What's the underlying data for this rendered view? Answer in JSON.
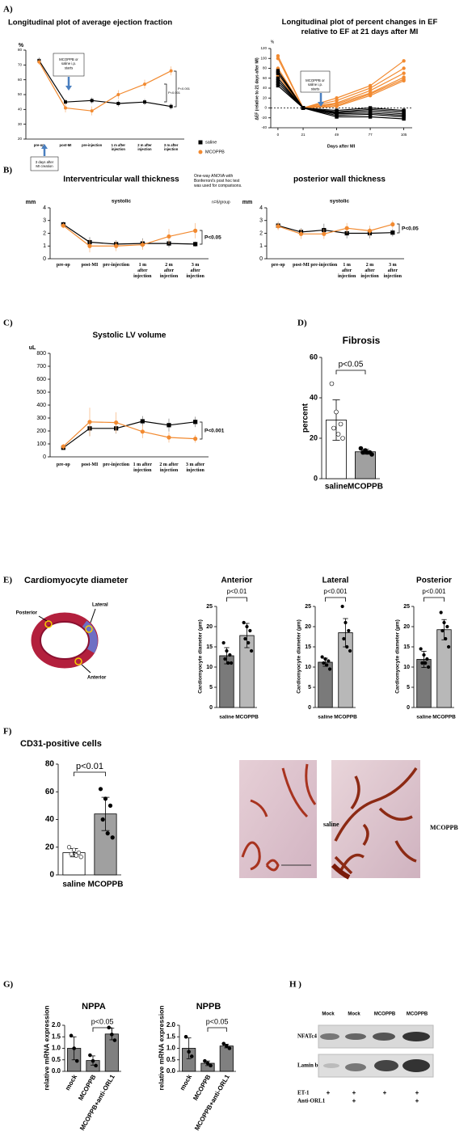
{
  "panel_labels": [
    "A)",
    "B)",
    "C)",
    "D)",
    "E)",
    "F)",
    "G)",
    "H )"
  ],
  "chart_data": [
    {
      "type": "line",
      "title": "Longitudinal plot of average ejection fraction",
      "ylabel": "%",
      "categories": [
        "pre-op",
        "post-MI",
        "pre-injection",
        "1 m after injection",
        "2 m after injection",
        "3 m after injection"
      ],
      "ylim": [
        20,
        80
      ],
      "yticks": [
        20,
        30,
        40,
        50,
        60,
        70,
        80
      ],
      "legend": "right",
      "series": [
        {
          "name": "saline",
          "color": "#000000",
          "marker": "square",
          "values": [
            73,
            45,
            46,
            44,
            45,
            42
          ],
          "errors": [
            2,
            2,
            2,
            2,
            2,
            2
          ]
        },
        {
          "name": "MCOPPB",
          "color": "#f28a30",
          "marker": "circle",
          "values": [
            72,
            41,
            39,
            50,
            57,
            66
          ],
          "errors": [
            2,
            3,
            3,
            3,
            3,
            3
          ]
        }
      ],
      "annotations": [
        "MCOPPB or saline i.p. starts",
        "3 days after MI creation",
        "P<0.001",
        "P<0.001",
        "One-way ANOVA with Bonferroni's post hoc test was used for comparisons.",
        "n=6/group"
      ]
    },
    {
      "type": "line",
      "title": "Longitudinal plot of percent changes in EF relative to EF at 21 days after MI",
      "yunit": "%",
      "ylabel": "ΔEF (relative to 21 days after MI)",
      "xlabel": "Days after MI",
      "x": [
        0,
        21,
        49,
        77,
        105
      ],
      "xlim": [
        -6,
        112
      ],
      "xticks": [
        0,
        21,
        49,
        77,
        105
      ],
      "ylim": [
        -40,
        120
      ],
      "yticks": [
        -40,
        -20,
        0,
        20,
        40,
        60,
        80,
        100,
        120
      ],
      "hline": 0,
      "series": [
        {
          "color": "#f28a30",
          "marker": "circle",
          "values": [
            105,
            0,
            20,
            45,
            95
          ]
        },
        {
          "color": "#f28a30",
          "marker": "circle",
          "values": [
            100,
            0,
            15,
            40,
            80
          ]
        },
        {
          "color": "#f28a30",
          "marker": "circle",
          "values": [
            80,
            0,
            10,
            35,
            70
          ]
        },
        {
          "color": "#f28a30",
          "marker": "circle",
          "values": [
            75,
            0,
            8,
            30,
            62
          ]
        },
        {
          "color": "#f28a30",
          "marker": "circle",
          "values": [
            70,
            0,
            5,
            28,
            58
          ]
        },
        {
          "color": "#f28a30",
          "marker": "circle",
          "values": [
            65,
            0,
            3,
            25,
            55
          ]
        },
        {
          "color": "#000000",
          "marker": "square",
          "values": [
            75,
            0,
            -5,
            0,
            -5
          ]
        },
        {
          "color": "#000000",
          "marker": "square",
          "values": [
            70,
            0,
            -8,
            -3,
            -8
          ]
        },
        {
          "color": "#000000",
          "marker": "square",
          "values": [
            60,
            0,
            -10,
            -6,
            -12
          ]
        },
        {
          "color": "#000000",
          "marker": "square",
          "values": [
            55,
            0,
            -12,
            -10,
            -15
          ]
        },
        {
          "color": "#000000",
          "marker": "square",
          "values": [
            50,
            0,
            -15,
            -13,
            -18
          ]
        },
        {
          "color": "#000000",
          "marker": "square",
          "values": [
            45,
            0,
            -18,
            -18,
            -22
          ]
        }
      ],
      "annotations": [
        "MCOPPB or saline i.p. starts"
      ]
    },
    {
      "type": "line",
      "title": "Interventricular wall thickness",
      "subtitle": "systolic",
      "ylabel": "mm",
      "categories": [
        "pre-op",
        "post-MI",
        "pre-injection",
        "1 m after injection",
        "2 m after injection",
        "3 m after injection"
      ],
      "ylim": [
        0,
        4
      ],
      "yticks": [
        0,
        1,
        2,
        3,
        4
      ],
      "series": [
        {
          "color": "#000000",
          "marker": "square",
          "values": [
            2.7,
            1.3,
            1.15,
            1.2,
            1.2,
            1.15
          ],
          "errors": [
            0.2,
            0.4,
            0.3,
            0.4,
            0.3,
            0.2
          ]
        },
        {
          "color": "#f28a30",
          "marker": "circle",
          "values": [
            2.6,
            1.0,
            1.0,
            1.1,
            1.75,
            2.2
          ],
          "errors": [
            0.2,
            0.5,
            0.4,
            0.4,
            0.6,
            0.6
          ]
        }
      ],
      "annotations": [
        "P<0.05"
      ]
    },
    {
      "type": "line",
      "title": "posterior wall thickness",
      "subtitle": "systolic",
      "ylabel": "mm",
      "categories": [
        "pre-op",
        "post-MI",
        "pre-injection",
        "1 m after injection",
        "2 m after injection",
        "3 m after injection"
      ],
      "ylim": [
        0,
        4
      ],
      "yticks": [
        0,
        1,
        2,
        3,
        4
      ],
      "series": [
        {
          "color": "#000000",
          "marker": "square",
          "values": [
            2.6,
            2.1,
            2.25,
            2.0,
            2.0,
            2.05
          ],
          "errors": [
            0.3,
            0.3,
            0.5,
            0.4,
            0.4,
            0.3
          ]
        },
        {
          "color": "#f28a30",
          "marker": "circle",
          "values": [
            2.55,
            1.95,
            1.95,
            2.4,
            2.2,
            2.7
          ],
          "errors": [
            0.3,
            0.4,
            0.4,
            0.4,
            0.4,
            0.3
          ]
        }
      ],
      "annotations": [
        "P<0.05"
      ]
    },
    {
      "type": "line",
      "title": "Systolic LV volume",
      "ylabel": "uL",
      "categories": [
        "pre-op",
        "post-MI",
        "pre-injection",
        "1 m after injection",
        "2 m after injection",
        "3 m after injection"
      ],
      "ylim": [
        0,
        800
      ],
      "yticks": [
        0,
        100,
        200,
        300,
        400,
        500,
        600,
        700,
        800
      ],
      "series": [
        {
          "color": "#000000",
          "marker": "square",
          "values": [
            70,
            220,
            220,
            275,
            245,
            270
          ],
          "errors": [
            15,
            60,
            40,
            40,
            50,
            40
          ]
        },
        {
          "color": "#f28a30",
          "marker": "circle",
          "values": [
            80,
            270,
            265,
            195,
            150,
            140
          ],
          "errors": [
            20,
            110,
            80,
            50,
            40,
            30
          ]
        }
      ],
      "annotations": [
        "P<0.001"
      ]
    },
    {
      "type": "bar",
      "title": "Fibrosis",
      "ylabel": "percent",
      "categories": [
        "saline",
        "MCOPPB"
      ],
      "values": [
        29,
        13.3
      ],
      "errors": [
        10,
        1.2
      ],
      "colors": [
        "#ffffff",
        "#a0a0a0"
      ],
      "points": [
        [
          47,
          33,
          27,
          25,
          22,
          20
        ],
        [
          15,
          14,
          13,
          13,
          13,
          12
        ]
      ],
      "ylim": [
        0,
        60
      ],
      "yticks": [
        0,
        20,
        40,
        60
      ],
      "annotations": [
        "p<0.05"
      ]
    },
    {
      "type": "bar",
      "title": "Anterior",
      "ylabel": "Cardiomyocyte diameter (µm)",
      "categories": [
        "saline",
        "MCOPPB"
      ],
      "values": [
        12.8,
        17.8
      ],
      "errors": [
        2,
        3
      ],
      "colors": [
        "#7a7a7a",
        "#b8b8b8"
      ],
      "points": [
        [
          16,
          14,
          13,
          12,
          11,
          11
        ],
        [
          21,
          20,
          19,
          17,
          16,
          14
        ]
      ],
      "ylim": [
        0,
        25
      ],
      "yticks": [
        0,
        5,
        10,
        15,
        20,
        25
      ],
      "annotations": [
        "p<0.01"
      ]
    },
    {
      "type": "bar",
      "title": "Lateral",
      "ylabel": "Cardiomyocyte diameter (µm)",
      "categories": [
        "saline",
        "MCOPPB"
      ],
      "values": [
        11.2,
        18.5
      ],
      "errors": [
        1,
        3.5
      ],
      "colors": [
        "#7a7a7a",
        "#b8b8b8"
      ],
      "points": [
        [
          12.5,
          12,
          11.5,
          11,
          10.5,
          9.5
        ],
        [
          25,
          21,
          19,
          17,
          15,
          14
        ]
      ],
      "ylim": [
        0,
        25
      ],
      "yticks": [
        0,
        5,
        10,
        15,
        20,
        25
      ],
      "annotations": [
        "p<0.001"
      ]
    },
    {
      "type": "bar",
      "title": "Posterior",
      "ylabel": "Cardiomyocyte diameter (µm)",
      "categories": [
        "saline",
        "MCOPPB"
      ],
      "values": [
        11.9,
        19.25
      ],
      "errors": [
        2,
        2.5
      ],
      "colors": [
        "#7a7a7a",
        "#b8b8b8"
      ],
      "points": [
        [
          14.5,
          13,
          12,
          11,
          11,
          10
        ],
        [
          23.5,
          21,
          20,
          19,
          17,
          15
        ]
      ],
      "ylim": [
        0,
        25
      ],
      "yticks": [
        0,
        5,
        10,
        15,
        20,
        25
      ],
      "annotations": [
        "p<0.001"
      ]
    },
    {
      "type": "bar",
      "title": "CD31-positive cells",
      "categories": [
        "saline",
        "MCOPPB"
      ],
      "values": [
        16,
        44
      ],
      "errors": [
        3,
        12
      ],
      "colors": [
        "#ffffff",
        "#a0a0a0"
      ],
      "points": [
        [
          20,
          18,
          16,
          15,
          14,
          13
        ],
        [
          62,
          55,
          50,
          40,
          30,
          27
        ]
      ],
      "ylim": [
        0,
        80
      ],
      "yticks": [
        0,
        20,
        40,
        60,
        80
      ],
      "annotations": [
        "p<0.01"
      ]
    },
    {
      "type": "bar",
      "title": "NPPA",
      "ylabel": "relative mRNA expression",
      "categories": [
        "mock",
        "MCOPPB",
        "MCOPPB+anti-ORL1"
      ],
      "values": [
        1.0,
        0.47,
        1.62
      ],
      "errors": [
        0.5,
        0.2,
        0.25
      ],
      "colors": [
        "#808080",
        "#808080",
        "#808080"
      ],
      "points": [
        [
          1.55,
          1.0,
          0.45
        ],
        [
          0.7,
          0.45,
          0.25
        ],
        [
          1.9,
          1.6,
          1.35
        ]
      ],
      "ylim": [
        0,
        2
      ],
      "yticks": [
        {
          "value": 0,
          "label": "0.0"
        },
        0.5,
        {
          "value": 1,
          "label": "1.0"
        },
        1.5,
        {
          "value": 2,
          "label": "2.0"
        }
      ],
      "annotations": [
        "p<0.05"
      ]
    },
    {
      "type": "bar",
      "title": "NPPB",
      "ylabel": "relative mRNA expression",
      "categories": [
        "mock",
        "MCOPPB",
        "MCOPPB+anti-ORL1"
      ],
      "values": [
        1.0,
        0.35,
        1.1
      ],
      "errors": [
        0.45,
        0.1,
        0.08
      ],
      "colors": [
        "#808080",
        "#808080",
        "#808080"
      ],
      "points": [
        [
          1.5,
          0.85,
          0.65
        ],
        [
          0.45,
          0.35,
          0.25
        ],
        [
          1.2,
          1.1,
          1.0
        ]
      ],
      "ylim": [
        0,
        2
      ],
      "yticks": [
        {
          "value": 0,
          "label": "0.0"
        },
        0.5,
        {
          "value": 1,
          "label": "1.0"
        },
        1.5,
        {
          "value": 2,
          "label": "2.0"
        }
      ],
      "annotations": [
        "p<0.05"
      ]
    }
  ],
  "panel_e": {
    "title": "Cardiomyocyte diameter",
    "image_labels": [
      "Posterior",
      "Lateral",
      "Anterior"
    ]
  },
  "panel_f": {
    "image_labels": [
      "saline",
      "MCOPPB"
    ]
  },
  "panel_h": {
    "lanes": [
      "Mock",
      "Mock",
      "MCOPPB",
      "MCOPPB"
    ],
    "rows": [
      "NFATc4",
      "Lamin b"
    ],
    "treatments": [
      {
        "label": "ET-1",
        "plus": [
          0,
          1,
          2,
          3
        ]
      },
      {
        "label": "Anti-ORL1",
        "plus": [
          1,
          3
        ]
      }
    ],
    "mark": "+"
  }
}
